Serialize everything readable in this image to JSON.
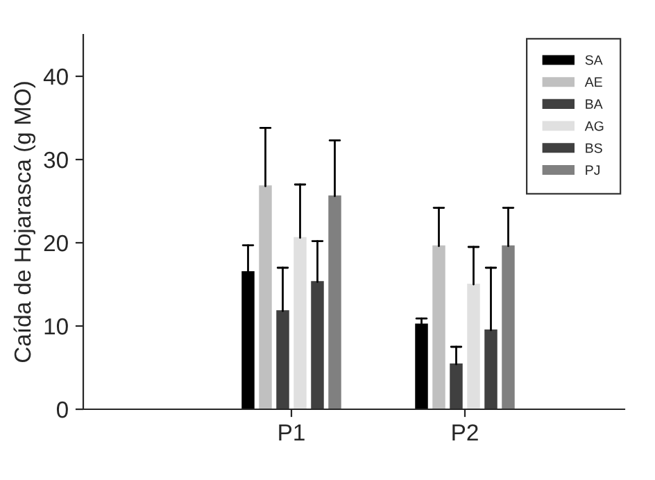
{
  "chart_data": {
    "type": "bar",
    "ylabel": "Caída de Hojarasca (g MO)",
    "categories": [
      "P1",
      "P2"
    ],
    "series": [
      {
        "name": "SA",
        "color": "#000000",
        "values": [
          16.5,
          10.2
        ],
        "errors": [
          [
            16.5,
            19.7
          ],
          [
            10.2,
            10.9
          ]
        ]
      },
      {
        "name": "AE",
        "color": "#c0c0c0",
        "values": [
          26.8,
          19.6
        ],
        "errors": [
          [
            26.8,
            33.8
          ],
          [
            19.6,
            24.2
          ]
        ]
      },
      {
        "name": "BA",
        "color": "#404040",
        "values": [
          11.8,
          5.4
        ],
        "errors": [
          [
            11.8,
            17.0
          ],
          [
            5.4,
            7.5
          ]
        ]
      },
      {
        "name": "AG",
        "color": "#e0e0e0",
        "values": [
          20.6,
          15.0
        ],
        "errors": [
          [
            20.6,
            27.0
          ],
          [
            15.0,
            19.5
          ]
        ]
      },
      {
        "name": "BS",
        "color": "#404040",
        "values": [
          15.3,
          9.5
        ],
        "errors": [
          [
            15.3,
            20.2
          ],
          [
            9.5,
            17.0
          ]
        ]
      },
      {
        "name": "PJ",
        "color": "#808080",
        "values": [
          25.6,
          19.6
        ],
        "errors": [
          [
            25.6,
            32.3
          ],
          [
            19.6,
            24.2
          ]
        ]
      }
    ],
    "ylim": [
      0,
      45
    ],
    "yticks": [
      0,
      10,
      20,
      30,
      40
    ],
    "grid": false,
    "legend": "top right"
  }
}
